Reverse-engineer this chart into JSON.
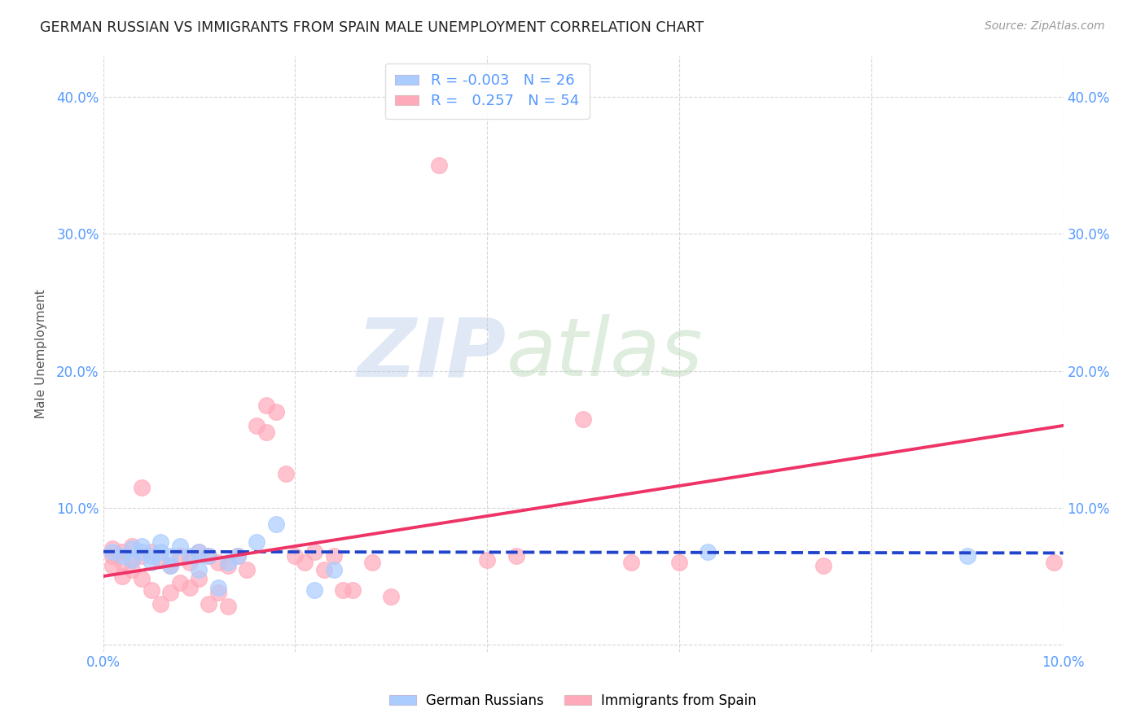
{
  "title": "GERMAN RUSSIAN VS IMMIGRANTS FROM SPAIN MALE UNEMPLOYMENT CORRELATION CHART",
  "source": "Source: ZipAtlas.com",
  "ylabel": "Male Unemployment",
  "xlim": [
    0.0,
    0.1
  ],
  "ylim": [
    -0.005,
    0.43
  ],
  "xticks": [
    0.0,
    0.02,
    0.04,
    0.06,
    0.08,
    0.1
  ],
  "yticks": [
    0.0,
    0.1,
    0.2,
    0.3,
    0.4
  ],
  "ytick_labels": [
    "",
    "10.0%",
    "20.0%",
    "30.0%",
    "40.0%"
  ],
  "xtick_labels": [
    "0.0%",
    "",
    "",
    "",
    "",
    "10.0%"
  ],
  "axis_label_color": "#5599ff",
  "grid_color": "#cccccc",
  "blue_color": "#aaccff",
  "pink_color": "#ffaabb",
  "blue_line_color": "#2244cc",
  "pink_line_color": "#ee3366",
  "blue_scatter": [
    [
      0.001,
      0.068
    ],
    [
      0.002,
      0.065
    ],
    [
      0.003,
      0.07
    ],
    [
      0.003,
      0.062
    ],
    [
      0.004,
      0.068
    ],
    [
      0.004,
      0.072
    ],
    [
      0.005,
      0.065
    ],
    [
      0.005,
      0.06
    ],
    [
      0.006,
      0.068
    ],
    [
      0.006,
      0.075
    ],
    [
      0.007,
      0.065
    ],
    [
      0.007,
      0.058
    ],
    [
      0.008,
      0.072
    ],
    [
      0.009,
      0.065
    ],
    [
      0.01,
      0.068
    ],
    [
      0.01,
      0.055
    ],
    [
      0.011,
      0.065
    ],
    [
      0.012,
      0.042
    ],
    [
      0.013,
      0.06
    ],
    [
      0.014,
      0.065
    ],
    [
      0.016,
      0.075
    ],
    [
      0.018,
      0.088
    ],
    [
      0.022,
      0.04
    ],
    [
      0.024,
      0.055
    ],
    [
      0.063,
      0.068
    ],
    [
      0.09,
      0.065
    ]
  ],
  "pink_scatter": [
    [
      0.001,
      0.065
    ],
    [
      0.001,
      0.058
    ],
    [
      0.001,
      0.07
    ],
    [
      0.002,
      0.068
    ],
    [
      0.002,
      0.06
    ],
    [
      0.002,
      0.05
    ],
    [
      0.003,
      0.072
    ],
    [
      0.003,
      0.062
    ],
    [
      0.003,
      0.055
    ],
    [
      0.004,
      0.065
    ],
    [
      0.004,
      0.115
    ],
    [
      0.004,
      0.048
    ],
    [
      0.005,
      0.068
    ],
    [
      0.005,
      0.04
    ],
    [
      0.006,
      0.062
    ],
    [
      0.006,
      0.03
    ],
    [
      0.007,
      0.058
    ],
    [
      0.007,
      0.038
    ],
    [
      0.008,
      0.065
    ],
    [
      0.008,
      0.045
    ],
    [
      0.009,
      0.06
    ],
    [
      0.009,
      0.042
    ],
    [
      0.01,
      0.068
    ],
    [
      0.01,
      0.048
    ],
    [
      0.011,
      0.065
    ],
    [
      0.011,
      0.03
    ],
    [
      0.012,
      0.06
    ],
    [
      0.012,
      0.038
    ],
    [
      0.013,
      0.058
    ],
    [
      0.013,
      0.028
    ],
    [
      0.014,
      0.065
    ],
    [
      0.015,
      0.055
    ],
    [
      0.016,
      0.16
    ],
    [
      0.017,
      0.175
    ],
    [
      0.017,
      0.155
    ],
    [
      0.018,
      0.17
    ],
    [
      0.019,
      0.125
    ],
    [
      0.02,
      0.065
    ],
    [
      0.021,
      0.06
    ],
    [
      0.022,
      0.068
    ],
    [
      0.023,
      0.055
    ],
    [
      0.024,
      0.065
    ],
    [
      0.025,
      0.04
    ],
    [
      0.026,
      0.04
    ],
    [
      0.028,
      0.06
    ],
    [
      0.03,
      0.035
    ],
    [
      0.035,
      0.35
    ],
    [
      0.04,
      0.062
    ],
    [
      0.043,
      0.065
    ],
    [
      0.05,
      0.165
    ],
    [
      0.055,
      0.06
    ],
    [
      0.06,
      0.06
    ],
    [
      0.075,
      0.058
    ],
    [
      0.099,
      0.06
    ]
  ],
  "blue_trend_x": [
    0.0,
    0.1
  ],
  "blue_trend_y": [
    0.068,
    0.067
  ],
  "pink_trend_x": [
    0.0,
    0.1
  ],
  "pink_trend_y": [
    0.05,
    0.16
  ]
}
